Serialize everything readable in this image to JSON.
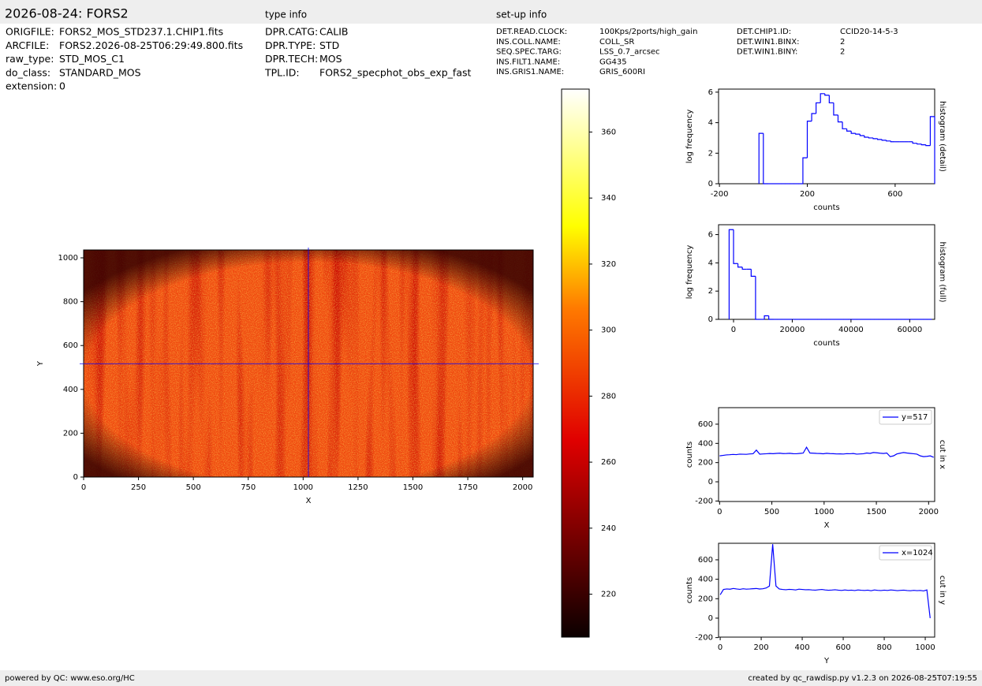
{
  "header": {
    "title": "2026-08-24: FORS2",
    "type_info_title": "type info",
    "setup_info_title": "set-up info"
  },
  "file_info": [
    [
      "ORIGFILE:",
      "FORS2_MOS_STD237.1.CHIP1.fits"
    ],
    [
      "ARCFILE:",
      "FORS2.2026-08-25T06:29:49.800.fits"
    ],
    [
      "raw_type:",
      "STD_MOS_C1"
    ],
    [
      "do_class:",
      "STANDARD_MOS"
    ],
    [
      "extension:",
      "0"
    ]
  ],
  "type_info": [
    [
      "DPR.CATG:",
      "CALIB"
    ],
    [
      "DPR.TYPE:",
      "STD"
    ],
    [
      "DPR.TECH:",
      "MOS"
    ],
    [
      "TPL.ID:",
      "FORS2_specphot_obs_exp_fast"
    ]
  ],
  "setup_info": [
    [
      "DET.READ.CLOCK:",
      "100Kps/2ports/high_gain"
    ],
    [
      "INS.COLL.NAME:",
      "COLL_SR"
    ],
    [
      "SEQ.SPEC.TARG:",
      "LSS_0.7_arcsec"
    ],
    [
      "INS.FILT1.NAME:",
      "GG435"
    ],
    [
      "INS.GRIS1.NAME:",
      "GRIS_600RI"
    ]
  ],
  "setup_info_2": [
    [
      "DET.CHIP1.ID:",
      "CCID20-14-5-3"
    ],
    [
      "DET.WIN1.BINX:",
      "2"
    ],
    [
      "DET.WIN1.BINY:",
      "2"
    ]
  ],
  "footer": {
    "left": "powered by QC: www.eso.org/HC",
    "right": "created by qc_rawdisp.py v1.2.3 on 2026-08-25T07:19:55"
  },
  "chart_data": [
    {
      "type": "image",
      "xlabel": "X",
      "ylabel": "Y",
      "xlim": [
        0,
        2048
      ],
      "ylim": [
        0,
        1036
      ],
      "xticks": [
        0,
        250,
        500,
        750,
        1000,
        1250,
        1500,
        1750,
        2000
      ],
      "yticks": [
        0,
        200,
        400,
        600,
        800,
        1000
      ],
      "crosshair_x": 1024,
      "crosshair_y": 517,
      "crosshair_color": "#0000ff",
      "colormap": "hot"
    },
    {
      "type": "colorbar",
      "ylim": [
        207,
        373
      ],
      "yticks": [
        220,
        240,
        260,
        280,
        300,
        320,
        340,
        360
      ],
      "colormap": "hot"
    },
    {
      "type": "histogram",
      "title": "histogram (detail)",
      "xlabel": "counts",
      "ylabel": "log frequency",
      "color": "#0000ff",
      "xlim": [
        -204,
        780
      ],
      "ylim": [
        0,
        6.2
      ],
      "xticks": [
        -200,
        200,
        600
      ],
      "yticks": [
        0,
        2,
        4,
        6
      ],
      "bins": [
        -20,
        0,
        20,
        40,
        60,
        80,
        100,
        120,
        140,
        160,
        180,
        200,
        220,
        240,
        260,
        280,
        300,
        320,
        340,
        360,
        380,
        400,
        420,
        440,
        460,
        480,
        500,
        520,
        540,
        560,
        580,
        600,
        620,
        640,
        660,
        680,
        700,
        720,
        740,
        760,
        780
      ],
      "values": [
        3.3,
        0,
        0,
        0,
        0,
        0,
        0,
        0,
        0,
        0,
        1.7,
        4.1,
        4.6,
        5.3,
        5.9,
        5.8,
        5.3,
        4.5,
        4.05,
        3.6,
        3.45,
        3.3,
        3.25,
        3.15,
        3.05,
        3.0,
        2.95,
        2.9,
        2.85,
        2.8,
        2.75,
        2.75,
        2.75,
        2.75,
        2.75,
        2.65,
        2.6,
        2.55,
        2.5,
        4.4
      ]
    },
    {
      "type": "histogram",
      "title": "histogram (full)",
      "xlabel": "counts",
      "ylabel": "log frequency",
      "color": "#0000ff",
      "xlim": [
        -5100,
        68500
      ],
      "ylim": [
        0,
        6.7
      ],
      "xticks": [
        0,
        20000,
        40000,
        60000
      ],
      "yticks": [
        0,
        2,
        4,
        6
      ],
      "bins": [
        -1500,
        0,
        1500,
        3000,
        4500,
        6000,
        7500,
        9000,
        10500,
        12000,
        13500,
        15000,
        16500,
        18000,
        19500,
        21000,
        22500,
        24000,
        25500,
        27000,
        28500,
        30000,
        31500,
        33000,
        34500,
        36000,
        37500,
        39000,
        40500,
        42000,
        43500,
        45000,
        46500,
        48000,
        49500,
        51000,
        52500,
        54000,
        55500,
        57000,
        58500,
        60000,
        61500,
        63000,
        64500,
        66000,
        67500
      ],
      "values": [
        6.35,
        3.95,
        3.7,
        3.55,
        3.55,
        3.05,
        0,
        0,
        0.25,
        0,
        0,
        0,
        0,
        0,
        0,
        0,
        0,
        0,
        0,
        0,
        0,
        0,
        0,
        0,
        0,
        0,
        0,
        0,
        0,
        0,
        0,
        0,
        0,
        0,
        0,
        0,
        0,
        0,
        0,
        0,
        0,
        0,
        0,
        0,
        0,
        0
      ]
    },
    {
      "type": "line",
      "title": "cut in x",
      "xlabel": "X",
      "ylabel": "counts",
      "legend": "upper right",
      "xlim": [
        -10,
        2058
      ],
      "ylim": [
        -205,
        772
      ],
      "xticks": [
        0,
        500,
        1000,
        1500,
        2000
      ],
      "yticks": [
        -200,
        0,
        200,
        400,
        600
      ],
      "x": [
        0,
        32,
        64,
        96,
        128,
        160,
        192,
        224,
        256,
        288,
        320,
        352,
        384,
        416,
        448,
        480,
        512,
        544,
        576,
        608,
        640,
        672,
        704,
        736,
        768,
        800,
        832,
        864,
        896,
        928,
        960,
        992,
        1024,
        1056,
        1088,
        1120,
        1152,
        1184,
        1216,
        1248,
        1280,
        1312,
        1344,
        1376,
        1408,
        1440,
        1472,
        1504,
        1536,
        1568,
        1600,
        1632,
        1664,
        1696,
        1728,
        1760,
        1792,
        1824,
        1856,
        1888,
        1920,
        1952,
        1984,
        2016,
        2048
      ],
      "series": [
        {
          "name": "y=517",
          "color": "#0000ff",
          "values": [
            270,
            275,
            280,
            282,
            285,
            283,
            288,
            287,
            286,
            290,
            292,
            330,
            288,
            290,
            292,
            295,
            293,
            296,
            298,
            294,
            295,
            297,
            293,
            292,
            296,
            299,
            360,
            300,
            298,
            296,
            295,
            292,
            297,
            294,
            293,
            290,
            291,
            289,
            293,
            292,
            295,
            288,
            290,
            292,
            300,
            296,
            305,
            302,
            298,
            295,
            300,
            262,
            270,
            290,
            298,
            305,
            300,
            296,
            292,
            288,
            270,
            262,
            265,
            270,
            255
          ]
        }
      ]
    },
    {
      "type": "line",
      "title": "cut in y",
      "xlabel": "Y",
      "ylabel": "counts",
      "legend": "upper right",
      "xlim": [
        -8,
        1046
      ],
      "ylim": [
        -195,
        770
      ],
      "xticks": [
        0,
        200,
        400,
        600,
        800,
        1000
      ],
      "yticks": [
        -200,
        0,
        200,
        400,
        600
      ],
      "x": [
        0,
        16,
        32,
        48,
        64,
        80,
        96,
        112,
        128,
        144,
        160,
        176,
        192,
        208,
        224,
        240,
        256,
        272,
        288,
        304,
        320,
        336,
        352,
        368,
        384,
        400,
        416,
        432,
        448,
        464,
        480,
        496,
        512,
        528,
        544,
        560,
        576,
        592,
        608,
        624,
        640,
        656,
        672,
        688,
        704,
        720,
        736,
        752,
        768,
        784,
        800,
        816,
        832,
        848,
        864,
        880,
        896,
        912,
        928,
        944,
        960,
        976,
        992,
        1008,
        1024
      ],
      "series": [
        {
          "name": "x=1024",
          "color": "#0000ff",
          "values": [
            240,
            295,
            300,
            298,
            305,
            300,
            296,
            302,
            298,
            300,
            303,
            305,
            300,
            302,
            310,
            330,
            760,
            330,
            300,
            295,
            292,
            296,
            294,
            290,
            298,
            295,
            292,
            293,
            290,
            288,
            292,
            295,
            290,
            287,
            289,
            292,
            288,
            285,
            290,
            286,
            288,
            284,
            290,
            287,
            285,
            288,
            282,
            290,
            286,
            284,
            288,
            285,
            290,
            287,
            283,
            286,
            288,
            284,
            282,
            286,
            283,
            285,
            280,
            290,
            0
          ]
        }
      ]
    }
  ]
}
